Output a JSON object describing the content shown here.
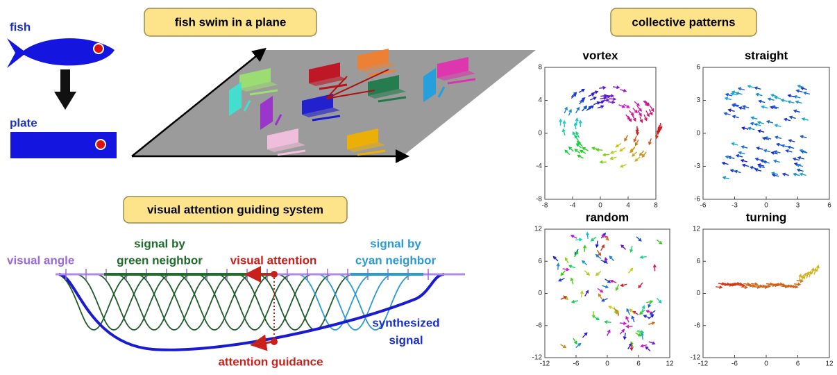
{
  "header": {
    "fish_label": "fish",
    "plate_label": "plate",
    "plane_title": "fish swim in a plane",
    "patterns_title": "collective patterns",
    "system_title": "visual attention guiding system"
  },
  "diagram": {
    "visual_angle": "visual angle",
    "green_signal": [
      "signal by",
      "green neighbor"
    ],
    "attention": "visual attention",
    "cyan_signal": [
      "signal by",
      "cyan neighbor"
    ],
    "synthesized": [
      "synthesized",
      "signal"
    ],
    "guidance": "attention guidance"
  },
  "panels": [
    {
      "title": "vortex",
      "xlim": [
        -8,
        8
      ],
      "ylim": [
        -8,
        8
      ],
      "xticks": [
        -8,
        -4,
        0,
        4,
        8
      ],
      "yticks": [
        -8,
        -4,
        0,
        4,
        8
      ]
    },
    {
      "title": "straight",
      "xlim": [
        -6,
        6
      ],
      "ylim": [
        -6,
        6
      ],
      "xticks": [
        -6,
        -3,
        0,
        3,
        6
      ],
      "yticks": [
        -6,
        -3,
        0,
        3,
        6
      ]
    },
    {
      "title": "random",
      "xlim": [
        -12,
        12
      ],
      "ylim": [
        -12,
        12
      ],
      "xticks": [
        -12,
        -6,
        0,
        6,
        12
      ],
      "yticks": [
        -12,
        -6,
        0,
        6,
        12
      ]
    },
    {
      "title": "turning",
      "xlim": [
        -12,
        12
      ],
      "ylim": [
        -12,
        12
      ],
      "xticks": [
        -12,
        -6,
        0,
        6,
        12
      ],
      "yticks": [
        -12,
        -6,
        0,
        6,
        12
      ]
    }
  ]
}
